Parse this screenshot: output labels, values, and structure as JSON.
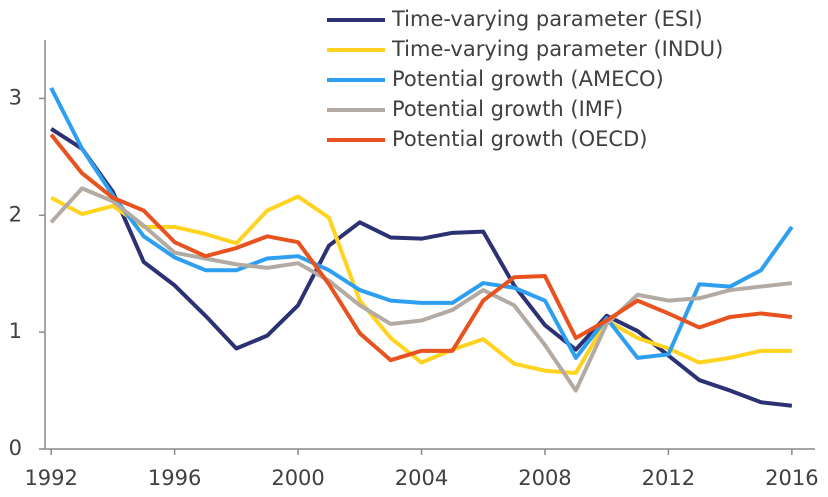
{
  "chart_data": {
    "type": "line",
    "x": [
      1992,
      1993,
      1994,
      1995,
      1996,
      1997,
      1998,
      1999,
      2000,
      2001,
      2002,
      2003,
      2004,
      2005,
      2006,
      2007,
      2008,
      2009,
      2010,
      2011,
      2012,
      2013,
      2014,
      2015,
      2016
    ],
    "series": [
      {
        "name": "Time-varying parameter (ESI)",
        "color": "#2b3172",
        "values": [
          2.74,
          2.57,
          2.2,
          1.6,
          1.4,
          1.14,
          0.86,
          0.97,
          1.23,
          1.74,
          1.94,
          1.81,
          1.8,
          1.85,
          1.86,
          1.4,
          1.06,
          0.85,
          1.14,
          1.01,
          0.8,
          0.59,
          0.5,
          0.4,
          0.37
        ]
      },
      {
        "name": "Time-varying parameter (INDU)",
        "color": "#ffd31f",
        "values": [
          2.15,
          2.01,
          2.08,
          1.9,
          1.9,
          1.84,
          1.76,
          2.04,
          2.16,
          1.98,
          1.27,
          0.95,
          0.74,
          0.85,
          0.94,
          0.73,
          0.67,
          0.65,
          1.1,
          0.95,
          0.86,
          0.74,
          0.78,
          0.84,
          0.84
        ]
      },
      {
        "name": "Potential growth (AMECO)",
        "color": "#2e9ff0",
        "values": [
          3.09,
          2.57,
          2.17,
          1.82,
          1.64,
          1.53,
          1.53,
          1.63,
          1.65,
          1.53,
          1.36,
          1.27,
          1.25,
          1.25,
          1.42,
          1.38,
          1.27,
          0.78,
          1.12,
          0.78,
          0.81,
          1.41,
          1.39,
          1.53,
          1.9
        ]
      },
      {
        "name": "Potential growth (IMF)",
        "color": "#b3aba3",
        "values": [
          1.94,
          2.23,
          2.12,
          1.91,
          1.68,
          1.63,
          1.58,
          1.55,
          1.59,
          1.44,
          1.23,
          1.07,
          1.1,
          1.19,
          1.36,
          1.23,
          0.89,
          0.5,
          1.07,
          1.32,
          1.27,
          1.29,
          1.36,
          1.39,
          1.42
        ]
      },
      {
        "name": "Potential growth (OECD)",
        "color": "#e8521e",
        "values": [
          2.69,
          2.36,
          2.15,
          2.04,
          1.77,
          1.65,
          1.72,
          1.82,
          1.77,
          1.41,
          0.99,
          0.76,
          0.84,
          0.84,
          1.27,
          1.47,
          1.48,
          0.95,
          1.1,
          1.27,
          1.16,
          1.04,
          1.13,
          1.16,
          1.13
        ]
      }
    ],
    "xlim": [
      1991.8,
      2016.75
    ],
    "xticks": [
      1992,
      1996,
      2000,
      2004,
      2008,
      2012,
      2016
    ],
    "ylim": [
      0,
      3.5
    ],
    "yticks": [
      0,
      1,
      2,
      3
    ],
    "legend": "top-right"
  }
}
